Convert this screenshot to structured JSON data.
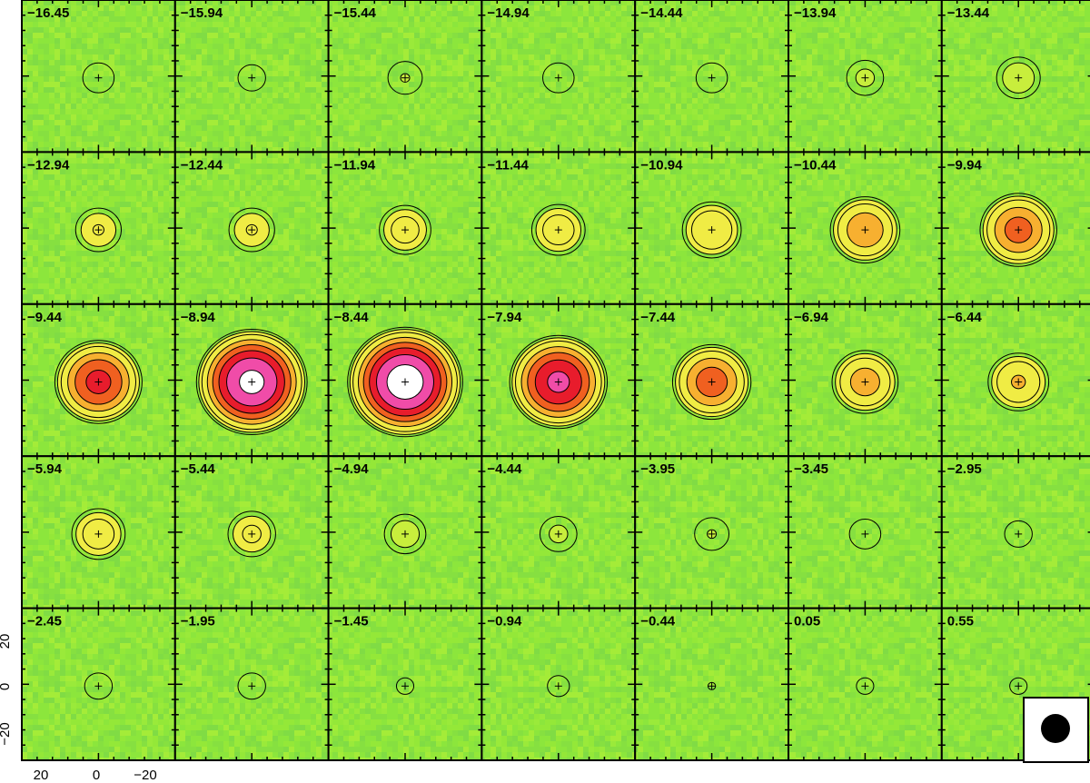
{
  "chart_data": {
    "type": "heatmap",
    "description_kind": "channel-map",
    "grid": {
      "rows": 5,
      "cols": 7
    },
    "panels": [
      {
        "label": "-16.45",
        "peak": 0.1
      },
      {
        "label": "-15.94",
        "peak": 0.08
      },
      {
        "label": "-15.44",
        "peak": 0.12
      },
      {
        "label": "-14.94",
        "peak": 0.1
      },
      {
        "label": "-14.44",
        "peak": 0.1
      },
      {
        "label": "-13.94",
        "peak": 0.14
      },
      {
        "label": "-13.44",
        "peak": 0.2
      },
      {
        "label": "-12.94",
        "peak": 0.22
      },
      {
        "label": "-12.44",
        "peak": 0.22
      },
      {
        "label": "-11.94",
        "peak": 0.28
      },
      {
        "label": "-11.44",
        "peak": 0.3
      },
      {
        "label": "-10.94",
        "peak": 0.36
      },
      {
        "label": "-10.44",
        "peak": 0.48
      },
      {
        "label": "-9.94",
        "peak": 0.56
      },
      {
        "label": "-9.44",
        "peak": 0.68
      },
      {
        "label": "-8.94",
        "peak": 0.95
      },
      {
        "label": "-8.44",
        "peak": 1.0
      },
      {
        "label": "-7.94",
        "peak": 0.8
      },
      {
        "label": "-7.44",
        "peak": 0.58
      },
      {
        "label": "-6.94",
        "peak": 0.44
      },
      {
        "label": "-6.44",
        "peak": 0.38
      },
      {
        "label": "-5.94",
        "peak": 0.3
      },
      {
        "label": "-5.44",
        "peak": 0.24
      },
      {
        "label": "-4.94",
        "peak": 0.18
      },
      {
        "label": "-4.44",
        "peak": 0.14
      },
      {
        "label": "-3.95",
        "peak": 0.12
      },
      {
        "label": "-3.45",
        "peak": 0.1
      },
      {
        "label": "-2.95",
        "peak": 0.08
      },
      {
        "label": "-2.45",
        "peak": 0.08
      },
      {
        "label": "-1.95",
        "peak": 0.08
      },
      {
        "label": "-1.45",
        "peak": 0.05
      },
      {
        "label": "-0.94",
        "peak": 0.06
      },
      {
        "label": "-0.44",
        "peak": 0.04
      },
      {
        "label": "0.05",
        "peak": 0.05
      },
      {
        "label": "0.55",
        "peak": 0.05
      }
    ],
    "x_ticks": [
      "20",
      "0",
      "−20"
    ],
    "y_ticks": [
      "20",
      "0",
      "−20"
    ],
    "xlim": [
      30,
      -30
    ],
    "ylim": [
      -30,
      30
    ],
    "beam_marker": "filled-circle",
    "center_marker": "plus",
    "colormap": [
      "#8ce63c",
      "#c8ee3c",
      "#f0ec44",
      "#f7b030",
      "#f06020",
      "#e81c2c",
      "#f04ca8",
      "#ffffff"
    ],
    "contour_color": "#000000",
    "negative_contour_color": "#1e7cc8"
  }
}
